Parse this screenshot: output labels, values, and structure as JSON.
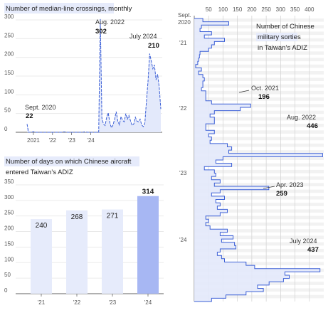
{
  "colors": {
    "line": "#3b5fd6",
    "fill": "#e3e9fb",
    "bar_light": "#e6ebfb",
    "bar_dark": "#a7b7f3",
    "title_bg": "#e6ebfb",
    "grid": "#e5e5e5",
    "band": "#f2f2f2"
  },
  "chart_data": [
    {
      "type": "area",
      "title_highlight": "Number of median-line crossings",
      "title_rest": ", monthly",
      "y_ticks": [
        "300",
        "250",
        "200",
        "150",
        "100",
        "50",
        "0"
      ],
      "ylim": [
        0,
        300
      ],
      "x_labels": [
        "2021",
        "'22",
        "'23",
        "'24"
      ],
      "x_start": "2020-09",
      "values": [
        22,
        0,
        0,
        0,
        2,
        0,
        0,
        0,
        0,
        0,
        0,
        0,
        0,
        0,
        0,
        0,
        0,
        0,
        0,
        0,
        0,
        0,
        0,
        1,
        1,
        0,
        0,
        0,
        0,
        0,
        0,
        0,
        0,
        0,
        0,
        0,
        1,
        1,
        0,
        0,
        0,
        0,
        0,
        0,
        0,
        0,
        302,
        38,
        22,
        18,
        40,
        52,
        25,
        12,
        20,
        35,
        55,
        30,
        20,
        42,
        32,
        28,
        50,
        35,
        45,
        30,
        18,
        22,
        40,
        30,
        28,
        35,
        20,
        15,
        25,
        85,
        138,
        210,
        190,
        170,
        180,
        140,
        155,
        120,
        62
      ],
      "annotations": [
        {
          "label": "Sept. 2020",
          "value": "22"
        },
        {
          "label": "Aug. 2022",
          "value": "302"
        },
        {
          "label": "July 2024",
          "value": "210"
        }
      ]
    },
    {
      "type": "bar",
      "title_line1": "Number of days on which Chinese aircraft",
      "title_line2": "entered Taiwan’s ADIZ",
      "categories": [
        "'21",
        "'22",
        "'23",
        "'24"
      ],
      "values": [
        240,
        268,
        271,
        314
      ],
      "value_labels": [
        "240",
        "268",
        "271",
        "314"
      ],
      "y_ticks": [
        "350",
        "300",
        "250",
        "200",
        "150",
        "100",
        "50",
        "0"
      ],
      "ylim": [
        0,
        350
      ]
    },
    {
      "type": "area",
      "orientation": "vertical",
      "title_line1": "Number of Chinese",
      "title_line2": "military sorties",
      "title_line3": "in Taiwan’s ADIZ",
      "x_ticks": [
        "50",
        "100",
        "150",
        "200",
        "250",
        "300",
        "350",
        "400"
      ],
      "xlim": [
        0,
        450
      ],
      "y_labels": [
        "Sept.",
        "2020",
        "'21",
        "'22",
        "'23",
        "'24"
      ],
      "values": [
        30,
        120,
        25,
        20,
        60,
        35,
        105,
        70,
        60,
        50,
        20,
        18,
        15,
        12,
        5,
        25,
        15,
        30,
        35,
        30,
        30,
        25,
        40,
        40,
        40,
        60,
        196,
        160,
        70,
        55,
        70,
        70,
        40,
        40,
        70,
        50,
        60,
        55,
        115,
        130,
        120,
        446,
        100,
        75,
        130,
        35,
        70,
        75,
        60,
        90,
        70,
        259,
        90,
        60,
        105,
        75,
        90,
        80,
        115,
        90,
        40,
        50,
        40,
        55,
        115,
        90,
        135,
        95,
        140,
        145,
        90,
        80,
        95,
        105,
        180,
        210,
        437,
        315,
        330,
        310,
        260,
        220,
        240,
        180,
        110,
        60
      ],
      "annotations": [
        {
          "label": "Oct. 2021",
          "value": "196"
        },
        {
          "label": "Aug. 2022",
          "value": "446"
        },
        {
          "label": "Apr. 2023",
          "value": "259"
        },
        {
          "label": "July 2024",
          "value": "437"
        }
      ]
    }
  ]
}
